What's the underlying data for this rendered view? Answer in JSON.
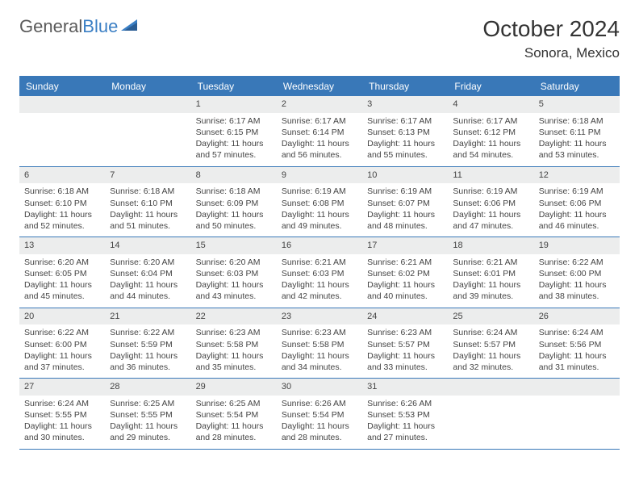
{
  "brand": {
    "part1": "General",
    "part2": "Blue"
  },
  "title": "October 2024",
  "location": "Sonora, Mexico",
  "colors": {
    "header_bar": "#3978b8",
    "day_num_bg": "#eceded",
    "text": "#333333",
    "logo_blue": "#3b7fc4"
  },
  "weekdays": [
    "Sunday",
    "Monday",
    "Tuesday",
    "Wednesday",
    "Thursday",
    "Friday",
    "Saturday"
  ],
  "weeks": [
    [
      {
        "n": "",
        "sr": "",
        "ss": "",
        "dl": ""
      },
      {
        "n": "",
        "sr": "",
        "ss": "",
        "dl": ""
      },
      {
        "n": "1",
        "sr": "Sunrise: 6:17 AM",
        "ss": "Sunset: 6:15 PM",
        "dl": "Daylight: 11 hours and 57 minutes."
      },
      {
        "n": "2",
        "sr": "Sunrise: 6:17 AM",
        "ss": "Sunset: 6:14 PM",
        "dl": "Daylight: 11 hours and 56 minutes."
      },
      {
        "n": "3",
        "sr": "Sunrise: 6:17 AM",
        "ss": "Sunset: 6:13 PM",
        "dl": "Daylight: 11 hours and 55 minutes."
      },
      {
        "n": "4",
        "sr": "Sunrise: 6:17 AM",
        "ss": "Sunset: 6:12 PM",
        "dl": "Daylight: 11 hours and 54 minutes."
      },
      {
        "n": "5",
        "sr": "Sunrise: 6:18 AM",
        "ss": "Sunset: 6:11 PM",
        "dl": "Daylight: 11 hours and 53 minutes."
      }
    ],
    [
      {
        "n": "6",
        "sr": "Sunrise: 6:18 AM",
        "ss": "Sunset: 6:10 PM",
        "dl": "Daylight: 11 hours and 52 minutes."
      },
      {
        "n": "7",
        "sr": "Sunrise: 6:18 AM",
        "ss": "Sunset: 6:10 PM",
        "dl": "Daylight: 11 hours and 51 minutes."
      },
      {
        "n": "8",
        "sr": "Sunrise: 6:18 AM",
        "ss": "Sunset: 6:09 PM",
        "dl": "Daylight: 11 hours and 50 minutes."
      },
      {
        "n": "9",
        "sr": "Sunrise: 6:19 AM",
        "ss": "Sunset: 6:08 PM",
        "dl": "Daylight: 11 hours and 49 minutes."
      },
      {
        "n": "10",
        "sr": "Sunrise: 6:19 AM",
        "ss": "Sunset: 6:07 PM",
        "dl": "Daylight: 11 hours and 48 minutes."
      },
      {
        "n": "11",
        "sr": "Sunrise: 6:19 AM",
        "ss": "Sunset: 6:06 PM",
        "dl": "Daylight: 11 hours and 47 minutes."
      },
      {
        "n": "12",
        "sr": "Sunrise: 6:19 AM",
        "ss": "Sunset: 6:06 PM",
        "dl": "Daylight: 11 hours and 46 minutes."
      }
    ],
    [
      {
        "n": "13",
        "sr": "Sunrise: 6:20 AM",
        "ss": "Sunset: 6:05 PM",
        "dl": "Daylight: 11 hours and 45 minutes."
      },
      {
        "n": "14",
        "sr": "Sunrise: 6:20 AM",
        "ss": "Sunset: 6:04 PM",
        "dl": "Daylight: 11 hours and 44 minutes."
      },
      {
        "n": "15",
        "sr": "Sunrise: 6:20 AM",
        "ss": "Sunset: 6:03 PM",
        "dl": "Daylight: 11 hours and 43 minutes."
      },
      {
        "n": "16",
        "sr": "Sunrise: 6:21 AM",
        "ss": "Sunset: 6:03 PM",
        "dl": "Daylight: 11 hours and 42 minutes."
      },
      {
        "n": "17",
        "sr": "Sunrise: 6:21 AM",
        "ss": "Sunset: 6:02 PM",
        "dl": "Daylight: 11 hours and 40 minutes."
      },
      {
        "n": "18",
        "sr": "Sunrise: 6:21 AM",
        "ss": "Sunset: 6:01 PM",
        "dl": "Daylight: 11 hours and 39 minutes."
      },
      {
        "n": "19",
        "sr": "Sunrise: 6:22 AM",
        "ss": "Sunset: 6:00 PM",
        "dl": "Daylight: 11 hours and 38 minutes."
      }
    ],
    [
      {
        "n": "20",
        "sr": "Sunrise: 6:22 AM",
        "ss": "Sunset: 6:00 PM",
        "dl": "Daylight: 11 hours and 37 minutes."
      },
      {
        "n": "21",
        "sr": "Sunrise: 6:22 AM",
        "ss": "Sunset: 5:59 PM",
        "dl": "Daylight: 11 hours and 36 minutes."
      },
      {
        "n": "22",
        "sr": "Sunrise: 6:23 AM",
        "ss": "Sunset: 5:58 PM",
        "dl": "Daylight: 11 hours and 35 minutes."
      },
      {
        "n": "23",
        "sr": "Sunrise: 6:23 AM",
        "ss": "Sunset: 5:58 PM",
        "dl": "Daylight: 11 hours and 34 minutes."
      },
      {
        "n": "24",
        "sr": "Sunrise: 6:23 AM",
        "ss": "Sunset: 5:57 PM",
        "dl": "Daylight: 11 hours and 33 minutes."
      },
      {
        "n": "25",
        "sr": "Sunrise: 6:24 AM",
        "ss": "Sunset: 5:57 PM",
        "dl": "Daylight: 11 hours and 32 minutes."
      },
      {
        "n": "26",
        "sr": "Sunrise: 6:24 AM",
        "ss": "Sunset: 5:56 PM",
        "dl": "Daylight: 11 hours and 31 minutes."
      }
    ],
    [
      {
        "n": "27",
        "sr": "Sunrise: 6:24 AM",
        "ss": "Sunset: 5:55 PM",
        "dl": "Daylight: 11 hours and 30 minutes."
      },
      {
        "n": "28",
        "sr": "Sunrise: 6:25 AM",
        "ss": "Sunset: 5:55 PM",
        "dl": "Daylight: 11 hours and 29 minutes."
      },
      {
        "n": "29",
        "sr": "Sunrise: 6:25 AM",
        "ss": "Sunset: 5:54 PM",
        "dl": "Daylight: 11 hours and 28 minutes."
      },
      {
        "n": "30",
        "sr": "Sunrise: 6:26 AM",
        "ss": "Sunset: 5:54 PM",
        "dl": "Daylight: 11 hours and 28 minutes."
      },
      {
        "n": "31",
        "sr": "Sunrise: 6:26 AM",
        "ss": "Sunset: 5:53 PM",
        "dl": "Daylight: 11 hours and 27 minutes."
      },
      {
        "n": "",
        "sr": "",
        "ss": "",
        "dl": ""
      },
      {
        "n": "",
        "sr": "",
        "ss": "",
        "dl": ""
      }
    ]
  ]
}
